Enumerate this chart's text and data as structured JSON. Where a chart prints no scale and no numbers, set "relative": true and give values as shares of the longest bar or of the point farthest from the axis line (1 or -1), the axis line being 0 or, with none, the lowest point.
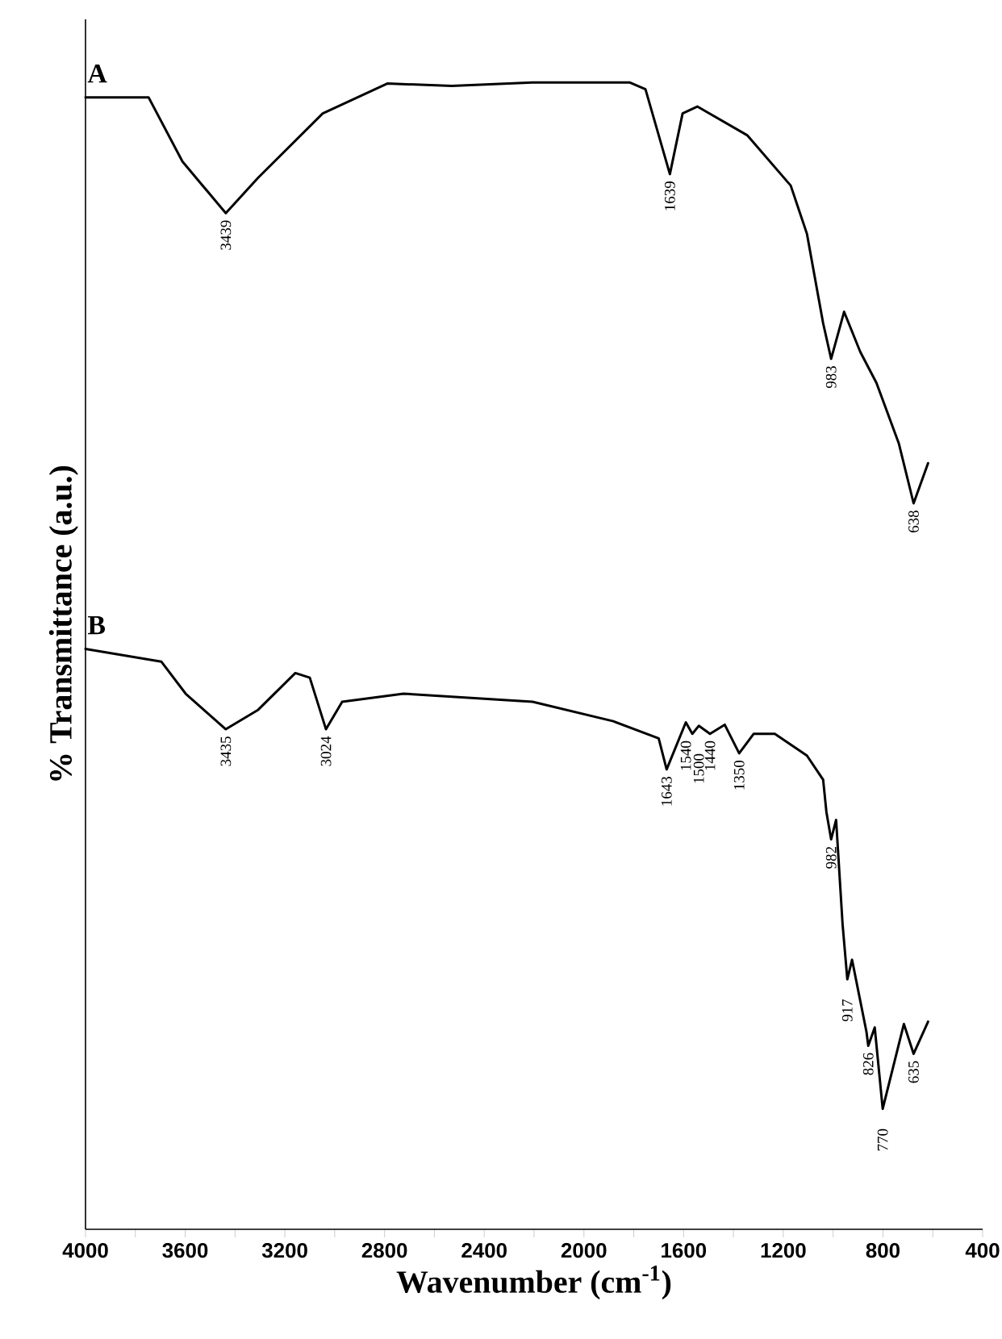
{
  "chart_data": {
    "type": "line",
    "relative": true,
    "xlabel": "Wavenumber (cm$^{-1}$)",
    "ylabel": "% Transmittance (a.u.)",
    "xlim": [
      4000,
      400
    ],
    "xticks": [
      4000,
      {
        "value": 3800,
        "label": null
      },
      3600,
      {
        "value": 3400,
        "label": null
      },
      3200,
      {
        "value": 3000,
        "label": null
      },
      2800,
      {
        "value": 2600,
        "label": null
      },
      2400,
      {
        "value": 2200,
        "label": null
      },
      2000,
      {
        "value": 1800,
        "label": null
      },
      1600,
      {
        "value": 1400,
        "label": null
      },
      1200,
      {
        "value": 1000,
        "label": null
      },
      800,
      {
        "value": 600,
        "label": null
      },
      400
    ],
    "tick_labels": "x",
    "legend": false,
    "line_style": "solid",
    "series": [
      {
        "name": "A",
        "color": "#000000",
        "x": [
          4000,
          3747,
          3611,
          3437,
          3307,
          3048,
          2789,
          2530,
          2206,
          1817,
          1753,
          1655,
          1604,
          1545,
          1345,
          1170,
          1105,
          1040,
          1008,
          956,
          891,
          826,
          736,
          677,
          619
        ],
        "values": [
          0.987,
          0.987,
          0.931,
          0.886,
          0.917,
          0.973,
          0.999,
          0.997,
          1.0,
          1.0,
          0.994,
          0.92,
          0.973,
          0.979,
          0.954,
          0.91,
          0.868,
          0.79,
          0.759,
          0.8,
          0.765,
          0.738,
          0.685,
          0.633,
          0.668
        ]
      },
      {
        "name": "B",
        "color": "#000000",
        "x": [
          4000,
          3696,
          3598,
          3437,
          3307,
          3158,
          3100,
          3035,
          2970,
          2724,
          2206,
          1882,
          1700,
          1668,
          1591,
          1565,
          1539,
          1494,
          1435,
          1377,
          1319,
          1234,
          1105,
          1040,
          1027,
          1008,
          988,
          962,
          943,
          924,
          866,
          859,
          833,
          801,
          716,
          677,
          619
        ],
        "values": [
          0.506,
          0.495,
          0.467,
          0.436,
          0.453,
          0.485,
          0.481,
          0.436,
          0.46,
          0.467,
          0.46,
          0.443,
          0.428,
          0.401,
          0.442,
          0.432,
          0.439,
          0.432,
          0.44,
          0.415,
          0.432,
          0.432,
          0.413,
          0.392,
          0.364,
          0.34,
          0.357,
          0.266,
          0.218,
          0.235,
          0.172,
          0.16,
          0.176,
          0.105,
          0.179,
          0.153,
          0.181
        ]
      }
    ],
    "annotations": [
      {
        "text": "3439",
        "x": 3437,
        "y": 0.886
      },
      {
        "text": "1639",
        "x": 1655,
        "y": 0.92
      },
      {
        "text": "983",
        "x": 1008,
        "y": 0.759
      },
      {
        "text": "638",
        "x": 677,
        "y": 0.633
      },
      {
        "text": "3435",
        "x": 3437,
        "y": 0.436
      },
      {
        "text": "3024",
        "x": 3035,
        "y": 0.436
      },
      {
        "text": "1643",
        "x": 1668,
        "y": 0.401
      },
      {
        "text": "1540",
        "x": 1591,
        "y": 0.442
      },
      {
        "text": "1500",
        "x": 1539,
        "y": 0.439
      },
      {
        "text": "1440",
        "x": 1494,
        "y": 0.432
      },
      {
        "text": "1350",
        "x": 1377,
        "y": 0.415
      },
      {
        "text": "982",
        "x": 1008,
        "y": 0.34
      },
      {
        "text": "917",
        "x": 943,
        "y": 0.218
      },
      {
        "text": "826",
        "x": 859,
        "y": 0.16
      },
      {
        "text": "770",
        "x": 801,
        "y": 0.105
      },
      {
        "text": "635",
        "x": 677,
        "y": 0.153
      }
    ]
  }
}
